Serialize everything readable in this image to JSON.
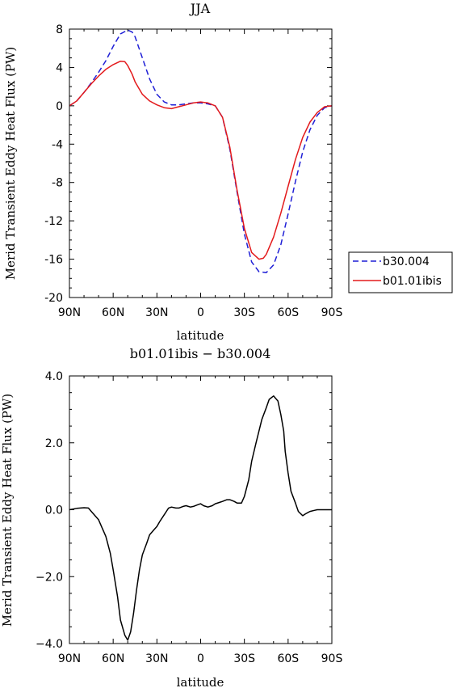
{
  "chart_data": [
    {
      "type": "line",
      "title": "JJA",
      "xlabel": "latitude",
      "ylabel": "Merid Transient Eddy Heat Flux (PW)",
      "x_tick_labels": [
        "90N",
        "60N",
        "30N",
        "0",
        "30S",
        "60S",
        "90S"
      ],
      "x_tick_values": [
        -90,
        -60,
        -30,
        0,
        30,
        60,
        90
      ],
      "xlim": [
        -90,
        90
      ],
      "ylim": [
        -20,
        8
      ],
      "y_tick_values": [
        8,
        4,
        0,
        -4,
        -8,
        -12,
        -16,
        -20
      ],
      "y_tick_labels": [
        "8",
        "4",
        "0",
        "-4",
        "-8",
        "-12",
        "-16",
        "-20"
      ],
      "grid": false,
      "legend_position": "outside-right",
      "series": [
        {
          "name": "b30.004",
          "color": "#1f1fd6",
          "dash": "dashed",
          "x": [
            -90,
            -85,
            -80,
            -75,
            -70,
            -65,
            -60,
            -55,
            -50,
            -47,
            -45,
            -40,
            -35,
            -30,
            -25,
            -20,
            -15,
            -10,
            -5,
            0,
            5,
            10,
            15,
            20,
            25,
            30,
            35,
            40,
            45,
            50,
            55,
            60,
            65,
            70,
            75,
            80,
            85,
            90
          ],
          "y": [
            0,
            0.5,
            1.4,
            2.4,
            3.5,
            4.7,
            6.2,
            7.5,
            7.9,
            7.7,
            7.2,
            5.0,
            2.8,
            1.2,
            0.4,
            0.1,
            0.1,
            0.2,
            0.3,
            0.3,
            0.2,
            0,
            -1.2,
            -4.5,
            -9.0,
            -13.4,
            -16.3,
            -17.3,
            -17.4,
            -16.6,
            -14.5,
            -11.3,
            -7.9,
            -4.8,
            -2.5,
            -1.0,
            -0.2,
            0
          ]
        },
        {
          "name": "b01.01ibis",
          "color": "#e31a1c",
          "dash": "solid",
          "x": [
            -90,
            -85,
            -80,
            -75,
            -70,
            -65,
            -60,
            -55,
            -52,
            -50,
            -47,
            -45,
            -40,
            -35,
            -30,
            -25,
            -20,
            -15,
            -10,
            -5,
            0,
            5,
            10,
            15,
            20,
            25,
            30,
            35,
            40,
            43,
            45,
            50,
            55,
            60,
            65,
            70,
            75,
            80,
            85,
            90
          ],
          "y": [
            0,
            0.5,
            1.4,
            2.3,
            3.1,
            3.8,
            4.3,
            4.65,
            4.6,
            4.2,
            3.3,
            2.5,
            1.2,
            0.5,
            0.1,
            -0.2,
            -0.3,
            -0.1,
            0.1,
            0.3,
            0.4,
            0.3,
            0,
            -1.2,
            -4.3,
            -8.8,
            -12.8,
            -15.3,
            -16.0,
            -15.9,
            -15.5,
            -13.7,
            -11.2,
            -8.4,
            -5.6,
            -3.3,
            -1.7,
            -0.7,
            -0.1,
            0
          ]
        }
      ]
    },
    {
      "type": "line",
      "title": "b01.01ibis − b30.004",
      "xlabel": "latitude",
      "ylabel": "Merid Transient Eddy Heat Flux (PW)",
      "x_tick_labels": [
        "90N",
        "60N",
        "30N",
        "0",
        "30S",
        "60S",
        "90S"
      ],
      "x_tick_values": [
        -90,
        -60,
        -30,
        0,
        30,
        60,
        90
      ],
      "xlim": [
        -90,
        90
      ],
      "ylim": [
        -4,
        4
      ],
      "y_tick_values": [
        4,
        2,
        0,
        -2,
        -4
      ],
      "y_tick_labels": [
        "4.0",
        "2.0",
        "0.0",
        "−2.0",
        "−4.0"
      ],
      "grid": false,
      "series": [
        {
          "name": "",
          "color": "#000000",
          "dash": "solid",
          "x": [
            -90,
            -85,
            -80,
            -77,
            -75,
            -70,
            -65,
            -62,
            -60,
            -57,
            -55,
            -52,
            -50,
            -48,
            -46,
            -44,
            -42,
            -40,
            -37,
            -35,
            -32,
            -30,
            -28,
            -25,
            -22,
            -20,
            -17,
            -15,
            -12,
            -10,
            -7,
            -5,
            -2,
            0,
            2,
            5,
            8,
            10,
            13,
            15,
            18,
            20,
            23,
            25,
            28,
            30,
            33,
            35,
            38,
            40,
            42,
            45,
            47,
            50,
            53,
            55,
            57,
            58,
            60,
            62,
            65,
            67,
            70,
            72,
            75,
            78,
            80,
            83,
            85,
            90
          ],
          "y": [
            0,
            0.04,
            0.06,
            0.05,
            -0.05,
            -0.3,
            -0.8,
            -1.3,
            -1.8,
            -2.6,
            -3.3,
            -3.75,
            -3.9,
            -3.65,
            -3.1,
            -2.4,
            -1.8,
            -1.35,
            -1.0,
            -0.75,
            -0.6,
            -0.5,
            -0.35,
            -0.15,
            0.05,
            0.08,
            0.05,
            0.05,
            0.1,
            0.12,
            0.08,
            0.1,
            0.15,
            0.18,
            0.12,
            0.08,
            0.12,
            0.18,
            0.22,
            0.25,
            0.3,
            0.3,
            0.25,
            0.2,
            0.2,
            0.4,
            0.9,
            1.45,
            2.0,
            2.35,
            2.7,
            3.05,
            3.3,
            3.4,
            3.25,
            2.85,
            2.35,
            1.75,
            1.1,
            0.55,
            0.2,
            -0.05,
            -0.18,
            -0.12,
            -0.05,
            -0.02,
            0,
            0,
            0,
            0
          ]
        }
      ]
    }
  ]
}
